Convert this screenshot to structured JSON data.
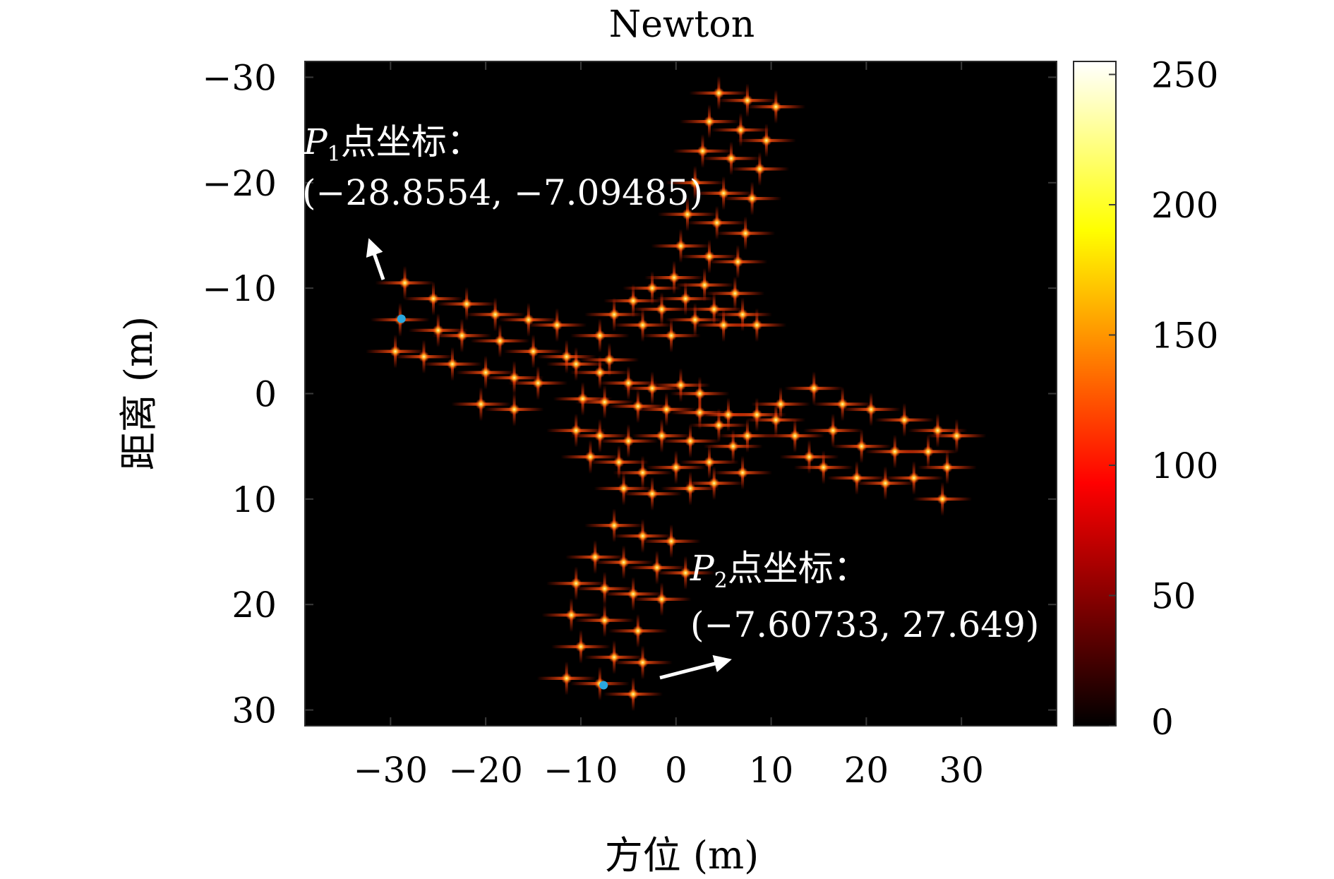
{
  "chart_data": {
    "type": "heatmap",
    "title": "Newton",
    "xlabel": "方位 (m)",
    "ylabel": "距离 (m)",
    "xlim": [
      -39,
      40
    ],
    "ylim": [
      -31.5,
      31.5
    ],
    "y_reversed": true,
    "x_ticks": [
      -30,
      -20,
      -10,
      0,
      10,
      20,
      30
    ],
    "x_tick_labels": [
      "−30",
      "−20",
      "−10",
      "0",
      "10",
      "20",
      "30"
    ],
    "y_ticks": [
      -30,
      -20,
      -10,
      0,
      10,
      20,
      30
    ],
    "y_tick_labels": [
      "−30",
      "−20",
      "−10",
      "0",
      "10",
      "20",
      "30"
    ],
    "grid": false,
    "colormap": "hot",
    "background_color": "#000000",
    "colorbar": {
      "range": [
        0,
        255
      ],
      "ticks": [
        0,
        50,
        100,
        150,
        200,
        250
      ],
      "tick_labels": [
        "0",
        "50",
        "100",
        "150",
        "200",
        "250"
      ]
    },
    "scatterers": [
      [
        4.5,
        -28.5
      ],
      [
        7.5,
        -27.8
      ],
      [
        10.5,
        -27.2
      ],
      [
        3.5,
        -25.8
      ],
      [
        6.8,
        -25.0
      ],
      [
        9.5,
        -24.0
      ],
      [
        2.8,
        -23.0
      ],
      [
        5.8,
        -22.3
      ],
      [
        8.8,
        -21.3
      ],
      [
        2.0,
        -20.0
      ],
      [
        5.0,
        -19.0
      ],
      [
        8.0,
        -18.5
      ],
      [
        1.2,
        -17.0
      ],
      [
        4.3,
        -16.2
      ],
      [
        7.3,
        -15.2
      ],
      [
        0.5,
        -14.0
      ],
      [
        3.5,
        -13.0
      ],
      [
        6.5,
        -12.5
      ],
      [
        -0.2,
        -11.0
      ],
      [
        3.0,
        -10.3
      ],
      [
        6.2,
        -9.5
      ],
      [
        -2.5,
        -10.0
      ],
      [
        1.0,
        -9.0
      ],
      [
        4.0,
        -8.0
      ],
      [
        7.0,
        -7.5
      ],
      [
        -4.5,
        -8.8
      ],
      [
        -1.5,
        -8.0
      ],
      [
        2.0,
        -7.0
      ],
      [
        5.0,
        -6.5
      ],
      [
        8.5,
        -6.5
      ],
      [
        -6.5,
        -7.5
      ],
      [
        -3.5,
        -6.5
      ],
      [
        -0.5,
        -5.5
      ],
      [
        -8.0,
        -5.5
      ],
      [
        -7.0,
        -3.2
      ],
      [
        -10.5,
        -2.8
      ],
      [
        -8.0,
        -2.0
      ],
      [
        -5.0,
        -1.0
      ],
      [
        -2.5,
        -0.5
      ],
      [
        0.5,
        -0.8
      ],
      [
        2.5,
        0.0
      ],
      [
        -9.8,
        0.5
      ],
      [
        -7.5,
        0.8
      ],
      [
        -4.0,
        1.2
      ],
      [
        -1.0,
        1.5
      ],
      [
        2.5,
        1.8
      ],
      [
        5.5,
        2.0
      ],
      [
        8.5,
        2.0
      ],
      [
        -10.5,
        3.5
      ],
      [
        -8.0,
        4.0
      ],
      [
        -5.0,
        4.5
      ],
      [
        -1.5,
        4.0
      ],
      [
        1.5,
        4.5
      ],
      [
        4.5,
        3.0
      ],
      [
        7.5,
        4.0
      ],
      [
        10.5,
        2.5
      ],
      [
        -9.0,
        6.0
      ],
      [
        -6.0,
        6.5
      ],
      [
        -3.5,
        7.5
      ],
      [
        0.0,
        7.0
      ],
      [
        3.5,
        6.5
      ],
      [
        6.0,
        5.0
      ],
      [
        -5.5,
        9.0
      ],
      [
        -2.5,
        9.5
      ],
      [
        1.5,
        9.0
      ],
      [
        4.0,
        8.5
      ],
      [
        7.0,
        7.5
      ],
      [
        -28.5,
        -10.5
      ],
      [
        -25.5,
        -9.0
      ],
      [
        -22.0,
        -8.5
      ],
      [
        -19.0,
        -7.5
      ],
      [
        -15.5,
        -7.0
      ],
      [
        -12.5,
        -6.5
      ],
      [
        -29.0,
        -7.0
      ],
      [
        -25.0,
        -6.0
      ],
      [
        -22.5,
        -5.5
      ],
      [
        -18.5,
        -5.0
      ],
      [
        -15.0,
        -4.0
      ],
      [
        -11.5,
        -3.5
      ],
      [
        -29.5,
        -4.0
      ],
      [
        -26.5,
        -3.5
      ],
      [
        -23.5,
        -2.8
      ],
      [
        -20.0,
        -2.0
      ],
      [
        -17.0,
        -1.5
      ],
      [
        -14.5,
        -1.0
      ],
      [
        -20.5,
        1.0
      ],
      [
        -17.0,
        1.5
      ],
      [
        11.0,
        1.0
      ],
      [
        14.5,
        -0.5
      ],
      [
        17.5,
        1.0
      ],
      [
        20.5,
        1.5
      ],
      [
        24.0,
        2.5
      ],
      [
        27.5,
        3.5
      ],
      [
        12.5,
        4.0
      ],
      [
        16.5,
        3.5
      ],
      [
        19.5,
        5.0
      ],
      [
        23.0,
        5.5
      ],
      [
        26.5,
        5.5
      ],
      [
        29.5,
        4.0
      ],
      [
        14.0,
        6.0
      ],
      [
        15.5,
        7.0
      ],
      [
        19.0,
        8.0
      ],
      [
        22.0,
        8.5
      ],
      [
        25.0,
        8.0
      ],
      [
        28.5,
        7.0
      ],
      [
        28.0,
        10.0
      ],
      [
        -6.5,
        12.5
      ],
      [
        -3.5,
        13.5
      ],
      [
        -0.5,
        14.0
      ],
      [
        -8.5,
        15.5
      ],
      [
        -5.5,
        16.0
      ],
      [
        -2.0,
        16.5
      ],
      [
        1.0,
        17.0
      ],
      [
        -10.5,
        18.0
      ],
      [
        -7.5,
        18.5
      ],
      [
        -4.5,
        19.0
      ],
      [
        -1.5,
        19.5
      ],
      [
        -11.0,
        21.0
      ],
      [
        -7.5,
        21.5
      ],
      [
        -4.0,
        22.5
      ],
      [
        -10.0,
        24.0
      ],
      [
        -6.5,
        25.0
      ],
      [
        -3.5,
        25.5
      ],
      [
        -11.5,
        27.0
      ],
      [
        -8.0,
        27.5
      ],
      [
        -4.5,
        28.5
      ]
    ]
  },
  "annotations": {
    "p1": {
      "letter": "P",
      "subscript": "1",
      "label": "点坐标：",
      "coords": "(−28.8554, −7.09485)",
      "x": -28.8554,
      "y": -7.09485
    },
    "p2": {
      "letter": "P",
      "subscript": "2",
      "label": "点坐标：",
      "coords": "(−7.60733, 27.649)",
      "x": -7.60733,
      "y": 27.649
    },
    "marker_color": "#2aa8e0",
    "text_color": "#ffffff"
  }
}
